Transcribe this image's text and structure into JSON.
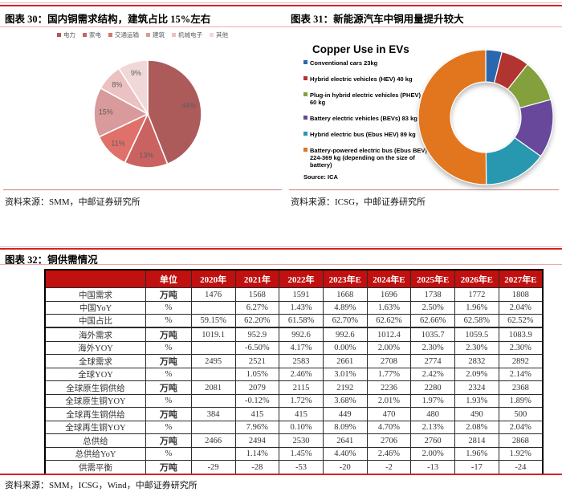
{
  "colors": {
    "accent_red_line": "#D42222",
    "pink_line": "#EBA8A8",
    "table_header_bg": "#C01010",
    "table_header_text": "#FFFFFF"
  },
  "page": {
    "figure30": {
      "caption": "图表 30：国内铜需求结构，建筑占比 15%左右",
      "source": "资料来源：SMM，中邮证券研究所"
    },
    "figure31": {
      "caption": "图表 31：新能源汽车中铜用量提升较大",
      "chart_title": "Copper Use in EVs",
      "source_note": "Source: ICA",
      "source": "资料来源：ICSG，中邮证券研究所"
    },
    "figure32": {
      "caption": "图表 32：铜供需情况",
      "source": "资料来源：SMM，ICSG，Wind，中邮证券研究所"
    }
  },
  "chart_data": [
    {
      "id": "fig30",
      "type": "pie",
      "title": "国内铜需求结构",
      "categories": [
        "电力",
        "家电",
        "交通运输",
        "建筑",
        "机械电子",
        "其他"
      ],
      "values": [
        44,
        13,
        11,
        15,
        8,
        9
      ],
      "unit": "%",
      "labels": [
        "44%",
        "13%",
        "11%",
        "15%",
        "8%",
        "9%"
      ],
      "colors": [
        "#AC5A5A",
        "#CB6262",
        "#DF716A",
        "#D89A9A",
        "#EBC1C1",
        "#F1D8D8"
      ],
      "start_angle_deg": 0,
      "legend_position": "top"
    },
    {
      "id": "fig31",
      "type": "pie",
      "subtype": "donut",
      "title": "Copper Use in EVs",
      "categories": [
        "Conventional cars",
        "Hybrid electric vehicles (HEV)",
        "Plug-in hybrid electric vehicles (PHEV)",
        "Battery electric vehicles (BEVs)",
        "Hybrid electric bus (Ebus HEV)",
        "Battery-powered electric bus (Ebus BEV)"
      ],
      "values_kg": [
        "23",
        "40",
        "60",
        "83",
        "89",
        "224-369"
      ],
      "plot_values": [
        23,
        40,
        60,
        83,
        89,
        296.5
      ],
      "legend": [
        "Conventional cars 23kg",
        "Hybrid electric vehicles (HEV) 40 kg",
        "Plug-in hybrid electric vehicles (PHEV) 60 kg",
        "Battery electric vehicles (BEVs) 83 kg",
        "Hybrid electric bus (Ebus HEV) 89 kg",
        "Battery-powered electric bus (Ebus BEV) 224-369 kg (depending on the size of battery)"
      ],
      "colors": [
        "#2B67AE",
        "#B23431",
        "#84A03C",
        "#68489B",
        "#2798B0",
        "#E2761E"
      ],
      "start_angle_deg": 0,
      "legend_position": "left",
      "source": "Source: ICA"
    },
    {
      "id": "fig32",
      "type": "table",
      "title": "铜供需情况",
      "columns": [
        "",
        "单位",
        "2020年",
        "2021年",
        "2022年",
        "2023年E",
        "2024年E",
        "2025年E",
        "2026年E",
        "2027年E"
      ],
      "rows": [
        [
          "中国需求",
          "万吨",
          "1476",
          "1568",
          "1591",
          "1668",
          "1696",
          "1738",
          "1772",
          "1808"
        ],
        [
          "中国YoY",
          "%",
          "",
          "6.27%",
          "1.43%",
          "4.89%",
          "1.63%",
          "2.50%",
          "1.96%",
          "2.04%"
        ],
        [
          "中国占比",
          "%",
          "59.15%",
          "62.20%",
          "61.58%",
          "62.70%",
          "62.62%",
          "62.66%",
          "62.58%",
          "62.52%"
        ],
        [
          "",
          "",
          "",
          "",
          "",
          "",
          "",
          "",
          "",
          ""
        ],
        [
          "海外需求",
          "万吨",
          "1019.1",
          "952.9",
          "992.6",
          "992.6",
          "1012.4",
          "1035.7",
          "1059.5",
          "1083.9"
        ],
        [
          "海外YOY",
          "%",
          "",
          "-6.50%",
          "4.17%",
          "0.00%",
          "2.00%",
          "2.30%",
          "2.30%",
          "2.30%"
        ],
        [
          "全球需求",
          "万吨",
          "2495",
          "2521",
          "2583",
          "2661",
          "2708",
          "2774",
          "2832",
          "2892"
        ],
        [
          "全球YOY",
          "%",
          "",
          "1.05%",
          "2.46%",
          "3.01%",
          "1.77%",
          "2.42%",
          "2.09%",
          "2.14%"
        ],
        [
          "全球原生铜供给",
          "万吨",
          "2081",
          "2079",
          "2115",
          "2192",
          "2236",
          "2280",
          "2324",
          "2368"
        ],
        [
          "全球原生铜YOY",
          "%",
          "",
          "-0.12%",
          "1.72%",
          "3.68%",
          "2.01%",
          "1.97%",
          "1.93%",
          "1.89%"
        ],
        [
          "全球再生铜供给",
          "万吨",
          "384",
          "415",
          "415",
          "449",
          "470",
          "480",
          "490",
          "500"
        ],
        [
          "全球再生铜YOY",
          "%",
          "",
          "7.96%",
          "0.10%",
          "8.09%",
          "4.70%",
          "2.13%",
          "2.08%",
          "2.04%"
        ],
        [
          "总供给",
          "万吨",
          "2466",
          "2494",
          "2530",
          "2641",
          "2706",
          "2760",
          "2814",
          "2868"
        ],
        [
          "总供给YoY",
          "%",
          "",
          "1.14%",
          "1.45%",
          "4.40%",
          "2.46%",
          "2.00%",
          "1.96%",
          "1.92%"
        ],
        [
          "供需平衡",
          "万吨",
          "-29",
          "-28",
          "-53",
          "-20",
          "-2",
          "-13",
          "-17",
          "-24"
        ]
      ]
    }
  ]
}
